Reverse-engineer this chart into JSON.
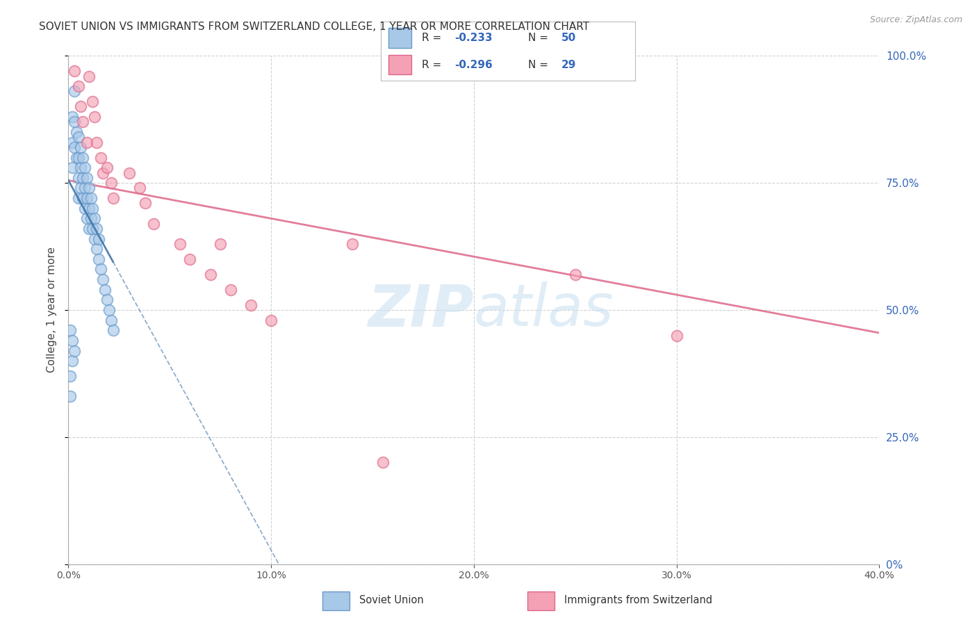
{
  "title": "SOVIET UNION VS IMMIGRANTS FROM SWITZERLAND COLLEGE, 1 YEAR OR MORE CORRELATION CHART",
  "source": "Source: ZipAtlas.com",
  "ylabel": "College, 1 year or more",
  "xlim": [
    0.0,
    0.4
  ],
  "ylim": [
    0.0,
    1.0
  ],
  "xticks": [
    0.0,
    0.1,
    0.2,
    0.3,
    0.4
  ],
  "yticks": [
    0.0,
    0.25,
    0.5,
    0.75,
    1.0
  ],
  "series1_label": "Soviet Union",
  "series2_label": "Immigrants from Switzerland",
  "series1_R": "-0.233",
  "series1_N": "50",
  "series2_R": "-0.296",
  "series2_N": "29",
  "series1_color": "#a8c8e8",
  "series2_color": "#f4a0b5",
  "series1_edge": "#6699cc",
  "series2_edge": "#dd6688",
  "trendline1_color": "#4477aa",
  "trendline2_color": "#dd6688",
  "grid_color": "#cccccc",
  "background_color": "#ffffff",
  "watermark_color": "#c8dff0",
  "series1_x": [
    0.001,
    0.002,
    0.002,
    0.002,
    0.003,
    0.003,
    0.003,
    0.004,
    0.004,
    0.005,
    0.005,
    0.005,
    0.005,
    0.006,
    0.006,
    0.006,
    0.007,
    0.007,
    0.007,
    0.008,
    0.008,
    0.008,
    0.009,
    0.009,
    0.009,
    0.01,
    0.01,
    0.01,
    0.011,
    0.011,
    0.012,
    0.012,
    0.013,
    0.013,
    0.014,
    0.014,
    0.015,
    0.015,
    0.016,
    0.017,
    0.018,
    0.019,
    0.02,
    0.021,
    0.022,
    0.001,
    0.001,
    0.002,
    0.002,
    0.003
  ],
  "series1_y": [
    0.46,
    0.88,
    0.83,
    0.78,
    0.93,
    0.87,
    0.82,
    0.85,
    0.8,
    0.84,
    0.8,
    0.76,
    0.72,
    0.82,
    0.78,
    0.74,
    0.8,
    0.76,
    0.72,
    0.78,
    0.74,
    0.7,
    0.76,
    0.72,
    0.68,
    0.74,
    0.7,
    0.66,
    0.72,
    0.68,
    0.7,
    0.66,
    0.68,
    0.64,
    0.66,
    0.62,
    0.64,
    0.6,
    0.58,
    0.56,
    0.54,
    0.52,
    0.5,
    0.48,
    0.46,
    0.37,
    0.33,
    0.44,
    0.4,
    0.42
  ],
  "series2_x": [
    0.003,
    0.005,
    0.006,
    0.007,
    0.009,
    0.01,
    0.012,
    0.013,
    0.014,
    0.016,
    0.017,
    0.019,
    0.021,
    0.022,
    0.03,
    0.035,
    0.038,
    0.042,
    0.055,
    0.06,
    0.07,
    0.075,
    0.08,
    0.09,
    0.1,
    0.14,
    0.155,
    0.25,
    0.3
  ],
  "series2_y": [
    0.97,
    0.94,
    0.9,
    0.87,
    0.83,
    0.96,
    0.91,
    0.88,
    0.83,
    0.8,
    0.77,
    0.78,
    0.75,
    0.72,
    0.77,
    0.74,
    0.71,
    0.67,
    0.63,
    0.6,
    0.57,
    0.63,
    0.54,
    0.51,
    0.48,
    0.63,
    0.2,
    0.57,
    0.45
  ],
  "trendline1_x0": 0.0,
  "trendline1_y0": 0.755,
  "trendline1_x1": 0.022,
  "trendline1_y1": 0.595,
  "trendline2_x0": 0.0,
  "trendline2_y0": 0.755,
  "trendline2_x1": 0.4,
  "trendline2_y1": 0.455
}
